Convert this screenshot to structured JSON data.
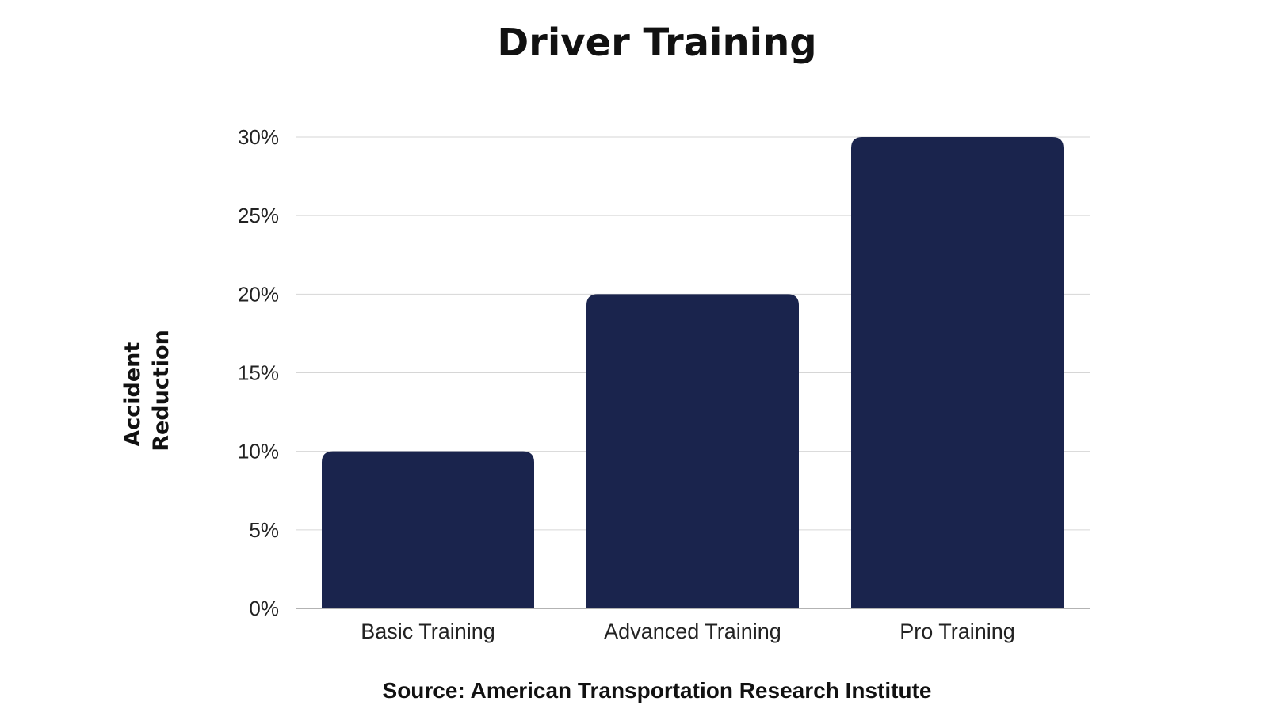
{
  "chart_data": {
    "type": "bar",
    "title": "Driver Training",
    "categories": [
      "Basic Training",
      "Advanced Training",
      "Pro Training"
    ],
    "values": [
      10,
      20,
      30
    ],
    "xlabel": "",
    "ylabel": "Accident Reduction",
    "ylabel_lines": [
      "Accident",
      "Reduction"
    ],
    "ylim": [
      0,
      30
    ],
    "yticks": [
      0,
      5,
      10,
      15,
      20,
      25,
      30
    ],
    "ytick_labels": [
      "0%",
      "5%",
      "10%",
      "15%",
      "20%",
      "25%",
      "30%"
    ],
    "grid": true,
    "legend": "none",
    "bar_color": "#1a244d",
    "source": "Source: American Transportation Research Institute"
  }
}
